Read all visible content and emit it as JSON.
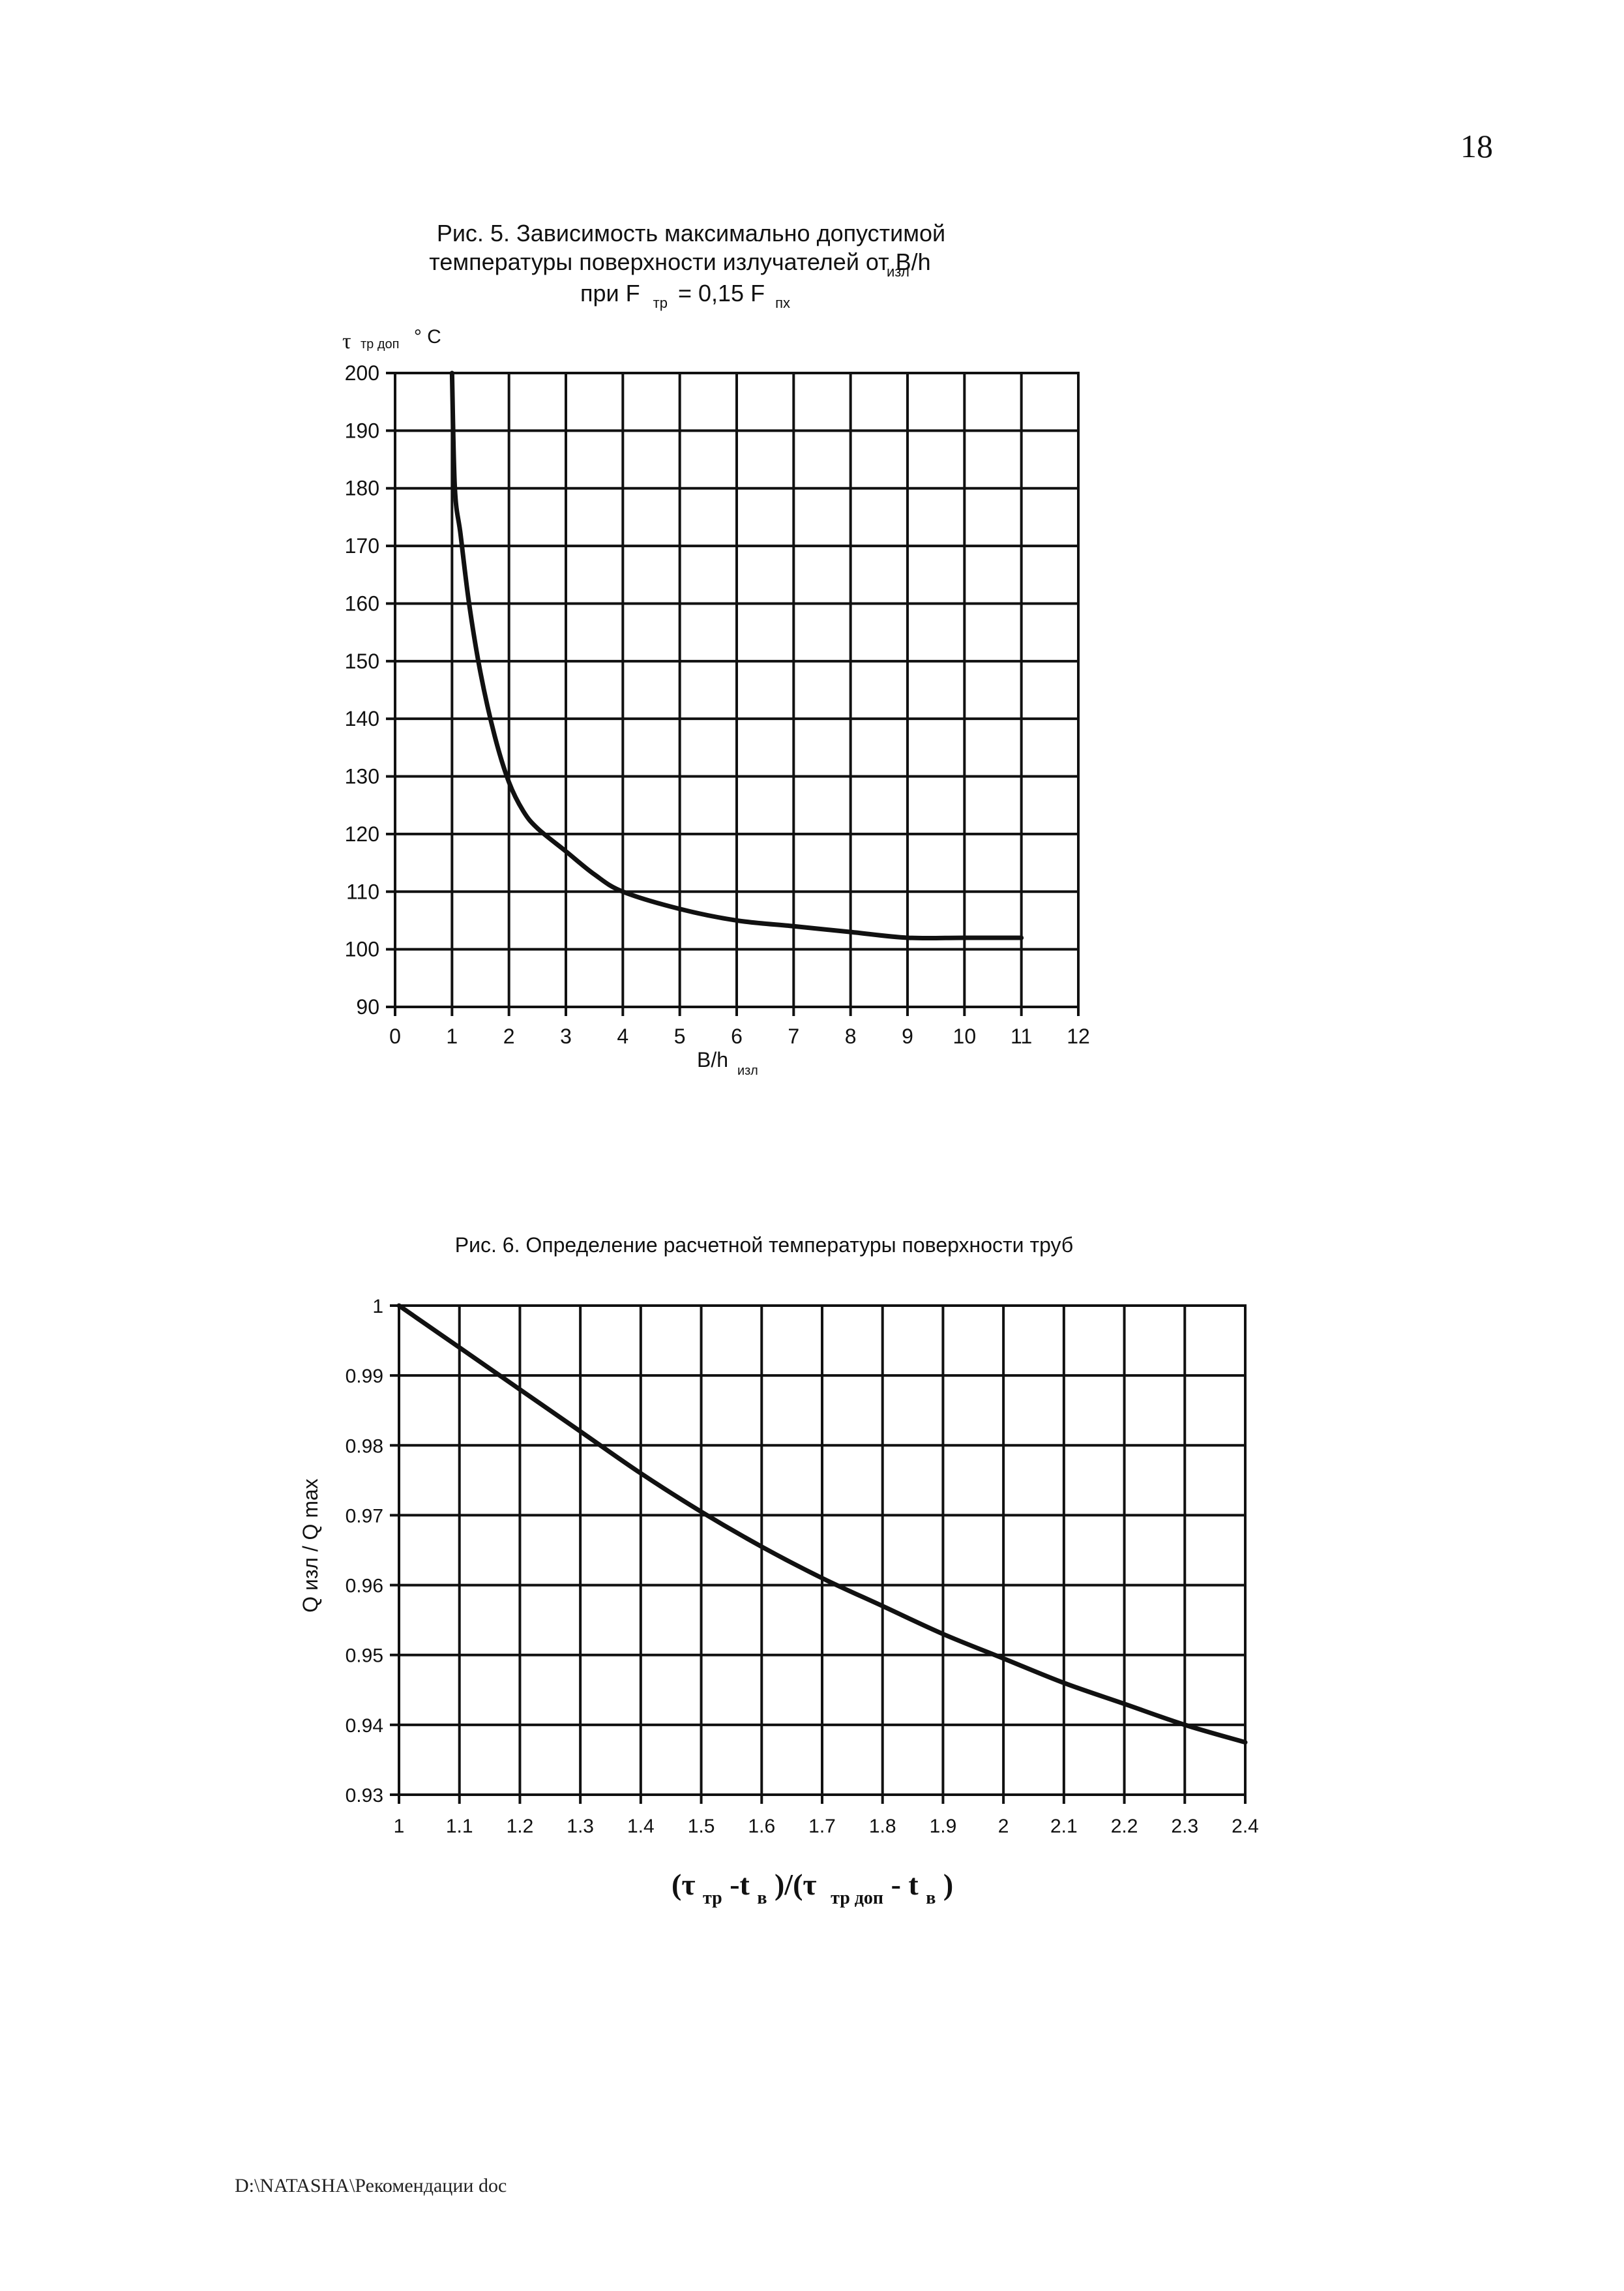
{
  "page_number": "18",
  "footer": "D:\\NATASHA\\Рекомендации doc",
  "chart_data": [
    {
      "type": "line",
      "title_lines": [
        "Рис. 5. Зависимость максимально допустимой",
        "температуры  поверхности излучателей  от B/h"
      ],
      "title_sub_1": "изл",
      "title_line3_parts": [
        "при F",
        "тр",
        "= 0,15 F",
        "пх"
      ],
      "ylabel_parts": [
        "τ",
        "тр доп",
        "° C"
      ],
      "xlabel_main": "B/h",
      "xlabel_sub": "изл",
      "xlim": [
        0,
        12
      ],
      "ylim": [
        90,
        200
      ],
      "x_ticks": [
        "0",
        "1",
        "2",
        "3",
        "4",
        "5",
        "6",
        "7",
        "8",
        "9",
        "10",
        "11",
        "12"
      ],
      "y_ticks": [
        "90",
        "100",
        "110",
        "120",
        "130",
        "140",
        "150",
        "160",
        "170",
        "180",
        "190",
        "200"
      ],
      "grid": true,
      "series": [
        {
          "x": [
            1.0,
            1.05,
            1.15,
            1.3,
            1.5,
            1.75,
            2.0,
            2.25,
            2.5,
            3.0,
            3.5,
            4.0,
            5.0,
            6.0,
            7.0,
            8.0,
            9.0,
            10.0,
            11.0
          ],
          "y": [
            200,
            180,
            172,
            160,
            148,
            137,
            129,
            124,
            121,
            117,
            113,
            110,
            107,
            105,
            104,
            103,
            102,
            102,
            102
          ]
        }
      ]
    },
    {
      "type": "line",
      "title": "Рис. 6. Определение расчетной температуры поверхности труб",
      "ylabel": "Q изл / Q max",
      "xlabel_parts": [
        "(τ",
        "тр",
        " -t",
        "в",
        ")/(τ",
        "тр доп",
        " - t",
        "в",
        ")"
      ],
      "xlim": [
        1,
        2.4
      ],
      "ylim": [
        0.93,
        1.0
      ],
      "x_ticks": [
        "1",
        "1.1",
        "1.2",
        "1.3",
        "1.4",
        "1.5",
        "1.6",
        "1.7",
        "1.8",
        "1.9",
        "2",
        "2.1",
        "2.2",
        "2.3",
        "2.4"
      ],
      "y_ticks": [
        "0.93",
        "0.94",
        "0.95",
        "0.96",
        "0.97",
        "0.98",
        "0.99",
        "1"
      ],
      "grid": true,
      "series": [
        {
          "x": [
            1.0,
            1.1,
            1.2,
            1.3,
            1.4,
            1.5,
            1.6,
            1.7,
            1.8,
            1.9,
            2.0,
            2.1,
            2.2,
            2.3,
            2.4
          ],
          "y": [
            1.0,
            0.994,
            0.988,
            0.982,
            0.976,
            0.9705,
            0.9655,
            0.961,
            0.957,
            0.953,
            0.9495,
            0.946,
            0.943,
            0.94,
            0.9375
          ]
        }
      ]
    }
  ]
}
